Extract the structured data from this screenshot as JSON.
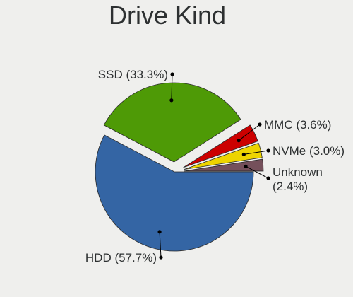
{
  "chart_data": {
    "type": "pie",
    "title": "Drive Kind",
    "slices": [
      {
        "label": "HDD",
        "value": 57.7,
        "display": "HDD (57.7%)",
        "color": "#3465a4",
        "exploded": false
      },
      {
        "label": "SSD",
        "value": 33.3,
        "display": "SSD (33.3%)",
        "color": "#4e9a06",
        "exploded": true
      },
      {
        "label": "MMC",
        "value": 3.6,
        "display": "MMC (3.6%)",
        "color": "#cc0000",
        "exploded": true
      },
      {
        "label": "NVMe",
        "value": 3.0,
        "display": "NVMe (3.0%)",
        "color": "#edd400",
        "exploded": true
      },
      {
        "label": "Unknown",
        "value": 2.4,
        "display": "Unknown (2.4%)",
        "display_lines": [
          "Unknown",
          "(2.4%)"
        ],
        "color": "#75505b",
        "exploded": true
      }
    ]
  }
}
